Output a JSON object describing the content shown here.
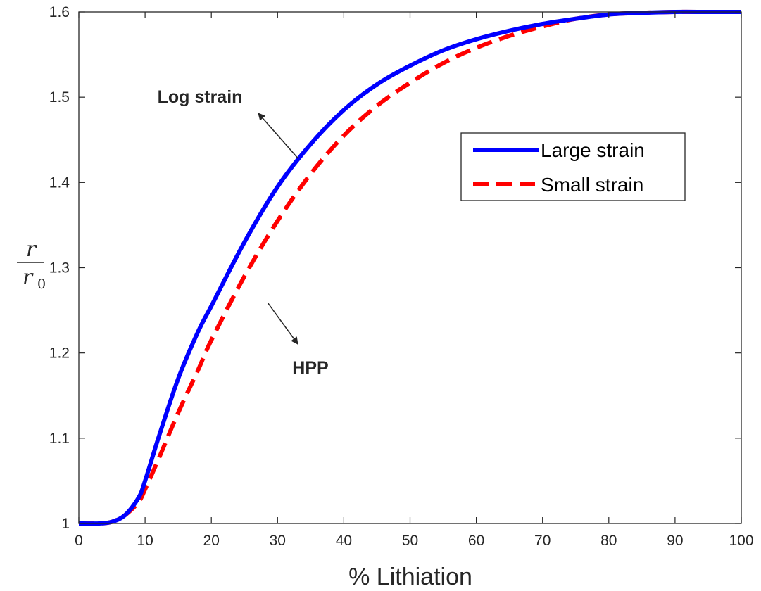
{
  "chart_data": {
    "type": "line",
    "xlabel": "% Lithiation",
    "ylabel": {
      "numerator": "r",
      "denominator": "r",
      "subscript": "0"
    },
    "xlim": [
      0,
      100
    ],
    "ylim": [
      1,
      1.6
    ],
    "xticks": [
      0,
      10,
      20,
      30,
      40,
      50,
      60,
      70,
      80,
      90,
      100
    ],
    "yticks": [
      1,
      1.1,
      1.2,
      1.3,
      1.4,
      1.5,
      1.6
    ],
    "ytick_labels": [
      "1",
      "1.1",
      "1.2",
      "1.3",
      "1.4",
      "1.5",
      "1.6"
    ],
    "grid": false,
    "legend_position": "top-right",
    "series": [
      {
        "name": "Large strain",
        "color": "#0000ff",
        "style": "solid",
        "x": [
          0,
          3,
          5,
          7,
          9,
          10,
          12,
          15,
          18,
          20,
          25,
          30,
          35,
          40,
          45,
          50,
          55,
          60,
          65,
          70,
          75,
          80,
          85,
          90,
          95,
          100
        ],
        "y": [
          1.0,
          1.0,
          1.002,
          1.01,
          1.03,
          1.05,
          1.1,
          1.17,
          1.225,
          1.255,
          1.33,
          1.395,
          1.445,
          1.485,
          1.515,
          1.537,
          1.555,
          1.568,
          1.578,
          1.586,
          1.592,
          1.597,
          1.599,
          1.6,
          1.6,
          1.6
        ]
      },
      {
        "name": "Small strain",
        "color": "#ff0000",
        "style": "dashed",
        "x": [
          0,
          3,
          5,
          7,
          9,
          10,
          12,
          15,
          18,
          20,
          25,
          30,
          35,
          40,
          45,
          50,
          55,
          60,
          65,
          70,
          75,
          80,
          85,
          90,
          95,
          100
        ],
        "y": [
          1.0,
          1.0,
          1.002,
          1.01,
          1.025,
          1.04,
          1.075,
          1.13,
          1.18,
          1.215,
          1.29,
          1.355,
          1.41,
          1.455,
          1.49,
          1.517,
          1.54,
          1.558,
          1.572,
          1.583,
          1.592,
          1.597,
          1.599,
          1.6,
          1.6,
          1.6
        ]
      }
    ],
    "annotations": [
      {
        "text": "Log strain",
        "target": "Large strain",
        "x": 33.5,
        "y": 1.425
      },
      {
        "text": "HPP",
        "target": "Small strain",
        "x": 27.5,
        "y": 1.265
      }
    ]
  }
}
